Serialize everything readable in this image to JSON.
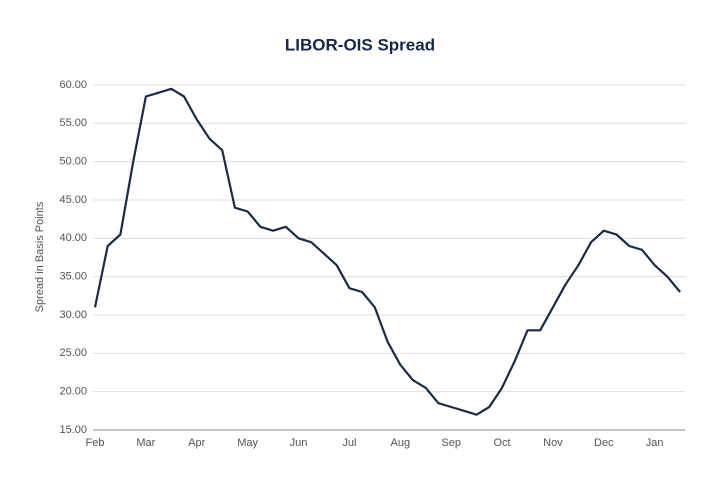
{
  "chart_data": {
    "type": "line",
    "title": "LIBOR-OIS Spread",
    "y_label": "Spread in Basis Points",
    "categories": [
      "Feb",
      null,
      null,
      null,
      "Mar",
      null,
      null,
      null,
      "Apr",
      null,
      null,
      null,
      "May",
      null,
      null,
      null,
      "Jun",
      null,
      null,
      null,
      "Jul",
      null,
      null,
      null,
      "Aug",
      null,
      null,
      null,
      "Sep",
      null,
      null,
      null,
      "Oct",
      null,
      null,
      null,
      "Nov",
      null,
      null,
      null,
      "Dec",
      null,
      null,
      null,
      "Jan",
      null,
      null
    ],
    "series": [
      {
        "name": "LIBOR-OIS Spread",
        "color": "#1a2b48",
        "values": [
          31,
          39,
          40.5,
          50,
          58.5,
          59,
          59.5,
          58.5,
          55.5,
          53,
          51.5,
          44,
          43.5,
          41.5,
          41,
          41.5,
          40,
          39.5,
          38,
          36.5,
          33.5,
          33,
          31,
          26.5,
          23.5,
          21.5,
          20.5,
          18.5,
          18,
          17.5,
          17,
          18,
          20.5,
          24,
          28,
          28,
          31,
          34,
          36.5,
          39.5,
          41,
          40.5,
          39,
          38.5,
          36.5,
          35,
          33
        ]
      }
    ],
    "ylim": [
      15,
      60
    ],
    "yticks": [
      {
        "value": 15,
        "label": "15.00"
      },
      {
        "value": 20,
        "label": "20.00"
      },
      {
        "value": 25,
        "label": "25.00"
      },
      {
        "value": 30,
        "label": "30.00"
      },
      {
        "value": 35,
        "label": "35.00"
      },
      {
        "value": 40,
        "label": "40.00"
      },
      {
        "value": 45,
        "label": "45.00"
      },
      {
        "value": 50,
        "label": "50.00"
      },
      {
        "value": 55,
        "label": "55.00"
      },
      {
        "value": 60,
        "label": "60.00"
      }
    ],
    "grid": true
  }
}
